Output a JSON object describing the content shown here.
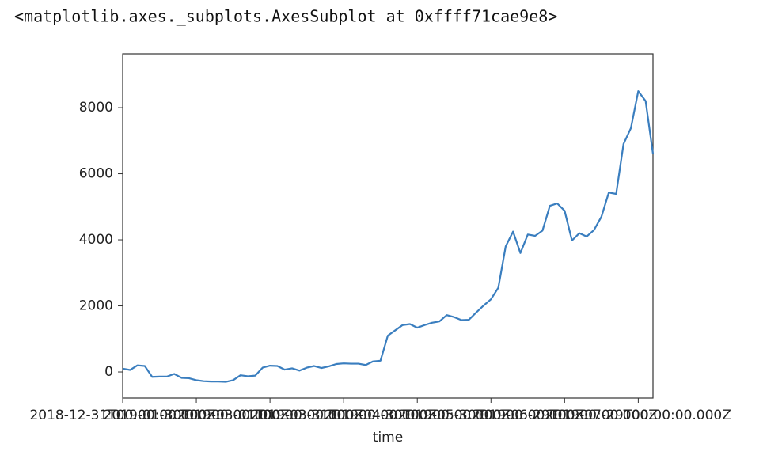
{
  "output_text": "<matplotlib.axes._subplots.AxesSubplot at 0xffff71cae9e8>",
  "chart_data": {
    "type": "line",
    "x_label": "time",
    "categories": [
      "2018-12-31T00:00:00.000Z",
      null,
      null,
      null,
      null,
      null,
      null,
      null,
      null,
      null,
      "2019-01-30T00:00:00.000Z",
      null,
      null,
      null,
      null,
      null,
      null,
      null,
      null,
      null,
      "2019-03-01T00:00:00.000Z",
      null,
      null,
      null,
      null,
      null,
      null,
      null,
      null,
      null,
      "2019-03-31T00:00:00.000Z",
      null,
      null,
      null,
      null,
      null,
      null,
      null,
      null,
      null,
      "2019-04-30T00:00:00.000Z",
      null,
      null,
      null,
      null,
      null,
      null,
      null,
      null,
      null,
      "2019-05-30T00:00:00.000Z",
      null,
      null,
      null,
      null,
      null,
      null,
      null,
      null,
      null,
      "2019-06-29T00:00:00.000Z",
      null,
      null,
      null,
      null,
      null,
      null,
      null,
      null,
      null,
      "2019-07-29T00:00:00.000Z",
      null,
      null
    ],
    "values": [
      100,
      60,
      200,
      180,
      -150,
      -140,
      -140,
      -60,
      -180,
      -190,
      -250,
      -280,
      -290,
      -290,
      -300,
      -250,
      -100,
      -130,
      -110,
      130,
      190,
      180,
      70,
      110,
      40,
      130,
      180,
      120,
      170,
      240,
      260,
      250,
      250,
      210,
      320,
      340,
      1100,
      1260,
      1420,
      1450,
      1340,
      1420,
      1490,
      1530,
      1720,
      1660,
      1570,
      1580,
      1800,
      2010,
      2200,
      2550,
      3800,
      4250,
      3600,
      4160,
      4120,
      4280,
      5030,
      5100,
      4880,
      3980,
      4200,
      4100,
      4300,
      4700,
      5430,
      5390,
      6900,
      7380,
      8500,
      8200,
      6600
    ],
    "color": "#3a7ebf",
    "ylim": [
      -790,
      9630
    ],
    "yticks": [
      0,
      2000,
      4000,
      6000,
      8000
    ],
    "grid": false
  }
}
